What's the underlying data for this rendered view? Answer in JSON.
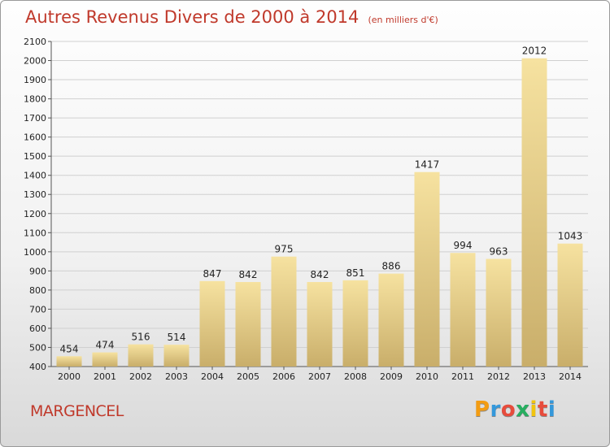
{
  "title": "Autres Revenus Divers de 2000 à 2014",
  "unit": "(en milliers d'€)",
  "commune": "MARGENCEL",
  "logo": {
    "letters": [
      "P",
      "r",
      "o",
      "x",
      "i",
      "t",
      "i"
    ],
    "colors": [
      "#f39c12",
      "#3498db",
      "#e74c3c",
      "#27ae60",
      "#f1c40f",
      "#e74c3c",
      "#3498db"
    ]
  },
  "colors": {
    "bar_light": "#f6e2a0",
    "bar_dark": "#c9ae6a",
    "grid": "#d0d0d0",
    "title": "#c0392b"
  },
  "chart_data": {
    "type": "bar",
    "categories": [
      "2000",
      "2001",
      "2002",
      "2003",
      "2004",
      "2005",
      "2006",
      "2007",
      "2008",
      "2009",
      "2010",
      "2011",
      "2012",
      "2013",
      "2014"
    ],
    "values": [
      454,
      474,
      516,
      514,
      847,
      842,
      975,
      842,
      851,
      886,
      1417,
      994,
      963,
      2012,
      1043
    ],
    "ylim": [
      400,
      2100
    ],
    "yticks": [
      400,
      500,
      600,
      700,
      800,
      900,
      1000,
      1100,
      1200,
      1300,
      1400,
      1500,
      1600,
      1700,
      1800,
      1900,
      2000,
      2100
    ],
    "grid": true
  }
}
